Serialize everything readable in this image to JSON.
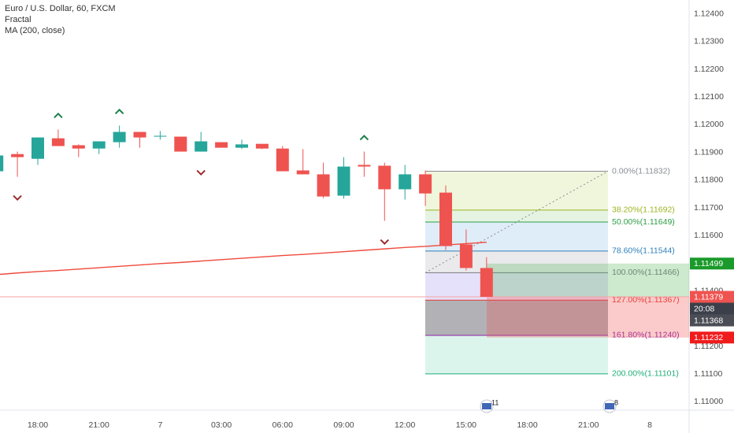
{
  "legend": {
    "symbol": "Euro / U.S. Dollar, 60, FXCM",
    "fractal": "Fractal",
    "ma": "MA (200, close)"
  },
  "chart_data": {
    "type": "candlestick",
    "categories": [
      null,
      null,
      "18:00",
      null,
      null,
      "21:00",
      null,
      null,
      "7",
      null,
      null,
      "03:00",
      null,
      null,
      "06:00",
      null,
      null,
      "09:00",
      null,
      null,
      "12:00",
      null,
      null,
      "15:00",
      null,
      null,
      "18:00",
      null,
      null,
      "21:00",
      null,
      null,
      "8",
      null
    ],
    "open": [
      1.11832,
      1.11894,
      1.11877,
      1.11951,
      1.11926,
      1.11914,
      1.11937,
      1.11974,
      1.11957,
      1.11957,
      1.11903,
      1.11937,
      1.11917,
      1.11931,
      1.11914,
      1.11835,
      1.11821,
      1.11744,
      1.11855,
      1.11852,
      1.11767,
      1.11821,
      1.11755,
      1.11568,
      1.11483,
      null,
      null,
      null,
      null,
      null,
      null,
      null,
      null,
      null
    ],
    "high": [
      1.11889,
      1.11903,
      1.11954,
      1.11983,
      1.11929,
      1.1194,
      1.11997,
      1.11974,
      1.11977,
      1.11957,
      1.11974,
      1.11937,
      1.11946,
      1.11931,
      1.11923,
      1.11912,
      1.11863,
      1.11883,
      1.11903,
      1.11863,
      1.11855,
      1.11835,
      1.11781,
      1.11622,
      1.11522,
      null,
      null,
      null,
      null,
      null,
      null,
      null,
      null,
      null
    ],
    "low": [
      1.11832,
      1.11812,
      1.11855,
      1.11923,
      1.11883,
      1.11894,
      1.11917,
      1.11917,
      1.11946,
      1.11903,
      1.11903,
      1.11917,
      1.11912,
      1.11912,
      1.11832,
      1.11821,
      1.11735,
      1.11733,
      1.11812,
      1.11653,
      1.1173,
      1.11707,
      1.11548,
      1.11474,
      1.11379,
      null,
      null,
      null,
      null,
      null,
      null,
      null,
      null,
      null
    ],
    "close": [
      1.11889,
      1.11883,
      1.11954,
      1.11923,
      1.11914,
      1.1194,
      1.11974,
      1.11954,
      1.1196,
      1.11903,
      1.1194,
      1.11917,
      1.11929,
      1.11914,
      1.11832,
      1.11821,
      1.11741,
      1.11849,
      1.11849,
      1.11767,
      1.11821,
      1.11752,
      1.11562,
      1.11483,
      1.11379,
      null,
      null,
      null,
      null,
      null,
      null,
      null,
      null,
      null
    ],
    "up_color": "#26a69a",
    "down_color": "#ef5350",
    "ma": {
      "color": "#ef4a3c",
      "values": [
        1.1146,
        1.11465,
        1.1147,
        1.11474,
        1.11479,
        1.11484,
        1.11489,
        1.11494,
        1.11499,
        1.11503,
        1.11508,
        1.11513,
        1.11518,
        1.11523,
        1.11528,
        1.11532,
        1.11537,
        1.11542,
        1.11547,
        1.11552,
        1.11557,
        1.11561,
        1.11566,
        1.11571,
        1.11576,
        null,
        null,
        null,
        null,
        null,
        null,
        null,
        null,
        null
      ]
    },
    "fractals": {
      "up_color": "#1b7f4a",
      "down_color": "#9c2b2b",
      "up": [
        null,
        null,
        null,
        1.11983,
        null,
        null,
        1.11997,
        null,
        null,
        null,
        null,
        null,
        null,
        null,
        null,
        null,
        null,
        null,
        1.11903,
        null,
        null,
        null,
        null,
        null,
        null,
        null,
        null,
        null,
        null,
        null,
        null,
        null,
        null,
        null
      ],
      "down": [
        null,
        1.11812,
        null,
        null,
        null,
        null,
        null,
        null,
        null,
        null,
        1.11903,
        null,
        null,
        null,
        null,
        null,
        null,
        null,
        null,
        1.11653,
        null,
        null,
        null,
        null,
        null,
        null,
        null,
        null,
        null,
        null,
        null,
        null,
        null,
        null
      ]
    },
    "ylim": [
      1.1097,
      1.1245
    ],
    "yticks": [
      {
        "value": 1.124,
        "label": "1.12400"
      },
      {
        "value": 1.123,
        "label": "1.12300"
      },
      {
        "value": 1.122,
        "label": "1.12200"
      },
      {
        "value": 1.121,
        "label": "1.12100"
      },
      {
        "value": 1.12,
        "label": "1.12000"
      },
      {
        "value": 1.119,
        "label": "1.11900"
      },
      {
        "value": 1.118,
        "label": "1.11800"
      },
      {
        "value": 1.117,
        "label": "1.11700"
      },
      {
        "value": 1.116,
        "label": "1.11600"
      },
      {
        "value": 1.115,
        "label": "1.11500"
      },
      {
        "value": 1.114,
        "label": "1.11400"
      },
      {
        "value": 1.113,
        "label": "1.11300"
      },
      {
        "value": 1.112,
        "label": "1.11200"
      },
      {
        "value": 1.111,
        "label": "1.11100"
      },
      {
        "value": 1.11,
        "label": "1.11000"
      }
    ],
    "grid": false,
    "fib": {
      "levels": [
        {
          "value": 1.11832,
          "label": "0.00%(1.11832)",
          "color": "#8a8d96"
        },
        {
          "value": 1.11692,
          "label": "38.20%(1.11692)",
          "color": "#9bb51f",
          "fill": "#eef5d8"
        },
        {
          "value": 1.11649,
          "label": "50.00%(1.11649)",
          "color": "#2e9e46",
          "fill": "#e2f3df"
        },
        {
          "value": 1.11544,
          "label": "78.60%(1.11544)",
          "color": "#2f7fb9",
          "fill": "#dcebf8"
        },
        {
          "value": 1.11466,
          "label": "100.00%(1.11466)",
          "color": "#777a82",
          "fill": "#e8e8ea"
        },
        {
          "value": 1.11367,
          "label": "127.00%(1.11367)",
          "color": "#e53935",
          "fill": "#e3defa"
        },
        {
          "value": 1.1124,
          "label": "161.80%(1.11240)",
          "color": "#8e24aa",
          "fill": "#a9a9ae"
        },
        {
          "value": 1.11101,
          "label": "200.00%(1.11101)",
          "color": "#1fae7a",
          "fill": "#d8f4ea"
        }
      ]
    },
    "price_labels": [
      {
        "value": 1.11499,
        "label": "1.11499",
        "color": "#1a9a2a"
      },
      {
        "value": 1.11379,
        "label": "1.11379",
        "color": "#ef5350"
      },
      {
        "label": "20:08",
        "color": "#3b3f4a"
      },
      {
        "value": 1.11368,
        "label": "1.11368",
        "color": "#4a4d55"
      },
      {
        "value": 1.11232,
        "label": "1.11232",
        "color": "#f01c1c"
      }
    ]
  },
  "events": [
    {
      "label": "11"
    },
    {
      "label": "8"
    }
  ]
}
